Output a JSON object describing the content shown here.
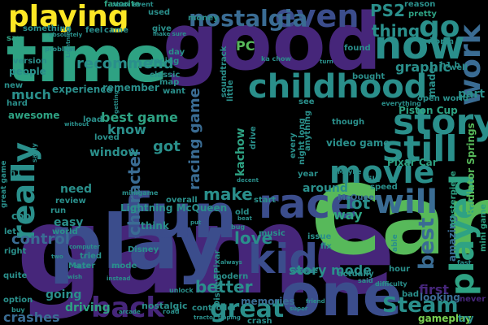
{
  "title": "word cloud",
  "palette": {
    "purple": "#46267a",
    "indigo": "#3b4d8c",
    "blue": "#3a6c93",
    "teal": "#2a8f8b",
    "sea": "#2ea283",
    "green": "#57b95a",
    "lime": "#7ad151",
    "yellow": "#fde725",
    "dark": "#3a1f5a"
  },
  "words": [
    {
      "text": "game",
      "color": "purple"
    },
    {
      "text": "Car",
      "color": "green"
    },
    {
      "text": "play",
      "color": "indigo"
    },
    {
      "text": "good",
      "color": "purple"
    },
    {
      "text": "time",
      "color": "sea"
    },
    {
      "text": "one",
      "color": "indigo"
    },
    {
      "text": "fun",
      "color": "indigo"
    },
    {
      "text": "childhood",
      "color": "teal"
    },
    {
      "text": "race",
      "color": "indigo"
    },
    {
      "text": "work",
      "color": "blue"
    },
    {
      "text": "now",
      "color": "teal"
    },
    {
      "text": "story",
      "color": "teal"
    },
    {
      "text": "still",
      "color": "teal"
    },
    {
      "text": "movie",
      "color": "teal"
    },
    {
      "text": "kid",
      "color": "indigo"
    },
    {
      "text": "played",
      "color": "sea"
    },
    {
      "text": "will",
      "color": "blue"
    },
    {
      "text": "go",
      "color": "teal"
    },
    {
      "text": "even",
      "color": "indigo"
    },
    {
      "text": "playing",
      "color": "yellow"
    },
    {
      "text": "nostalgia",
      "color": "blue"
    },
    {
      "text": "really",
      "color": "teal"
    },
    {
      "text": "back",
      "color": "purple"
    },
    {
      "text": "great",
      "color": "teal"
    },
    {
      "text": "Steam",
      "color": "teal"
    },
    {
      "text": "best",
      "color": "blue"
    },
    {
      "text": "PS2",
      "color": "teal"
    },
    {
      "text": "thing",
      "color": "teal"
    },
    {
      "text": "recommend",
      "color": "teal"
    },
    {
      "text": "control",
      "color": "blue"
    },
    {
      "text": "love",
      "color": "teal"
    },
    {
      "text": "better",
      "color": "teal"
    },
    {
      "text": "make",
      "color": "teal"
    },
    {
      "text": "character",
      "color": "blue"
    },
    {
      "text": "lot",
      "color": "teal"
    },
    {
      "text": "story mode",
      "color": "teal"
    },
    {
      "text": "much",
      "color": "teal"
    },
    {
      "text": "got",
      "color": "teal"
    },
    {
      "text": "know",
      "color": "teal"
    },
    {
      "text": "best game",
      "color": "sea"
    },
    {
      "text": "racing game",
      "color": "blue"
    },
    {
      "text": "graphic",
      "color": "teal"
    },
    {
      "text": "first",
      "color": "purple"
    },
    {
      "text": "crashes",
      "color": "blue"
    },
    {
      "text": "window",
      "color": "teal"
    },
    {
      "text": "need",
      "color": "teal"
    },
    {
      "text": "way",
      "color": "sea"
    },
    {
      "text": "around",
      "color": "teal"
    },
    {
      "text": "easy",
      "color": "teal"
    },
    {
      "text": "PC",
      "color": "green"
    },
    {
      "text": "kachow",
      "color": "sea"
    },
    {
      "text": "going",
      "color": "teal"
    },
    {
      "text": "driving",
      "color": "sea"
    },
    {
      "text": "Pixar Car",
      "color": "sea"
    },
    {
      "text": "video game",
      "color": "teal"
    },
    {
      "text": "Piston Cup",
      "color": "sea"
    },
    {
      "text": "Radiator Springs",
      "color": "green"
    },
    {
      "text": "Lightning McQueen",
      "color": "teal"
    },
    {
      "text": "awesome",
      "color": "sea"
    },
    {
      "text": "looking",
      "color": "blue"
    },
    {
      "text": "amazing",
      "color": "blue"
    },
    {
      "text": "part",
      "color": "teal"
    },
    {
      "text": "made",
      "color": "teal"
    },
    {
      "text": "memories",
      "color": "blue"
    },
    {
      "text": "gameplay",
      "color": "lime"
    },
    {
      "text": "cool",
      "color": "teal"
    },
    {
      "text": "think",
      "color": "teal"
    },
    {
      "text": "people",
      "color": "teal"
    },
    {
      "text": "experience",
      "color": "teal"
    },
    {
      "text": "remember",
      "color": "teal"
    },
    {
      "text": "nostalgic",
      "color": "teal"
    },
    {
      "text": "controller",
      "color": "teal"
    },
    {
      "text": "mini game",
      "color": "sea"
    },
    {
      "text": "open world",
      "color": "teal"
    },
    {
      "text": "hard",
      "color": "teal"
    },
    {
      "text": "McQueen",
      "color": "blue"
    },
    {
      "text": "say",
      "color": "sea"
    },
    {
      "text": "feel",
      "color": "teal"
    },
    {
      "text": "came",
      "color": "teal"
    },
    {
      "text": "give",
      "color": "teal"
    },
    {
      "text": "classic",
      "color": "teal"
    },
    {
      "text": "favorite",
      "color": "sea"
    },
    {
      "text": "money",
      "color": "teal"
    },
    {
      "text": "reason",
      "color": "teal"
    },
    {
      "text": "pretty",
      "color": "sea"
    },
    {
      "text": "worth",
      "color": "teal"
    },
    {
      "text": "found",
      "color": "teal"
    },
    {
      "text": "bought",
      "color": "teal"
    },
    {
      "text": "masterpiece",
      "color": "sea"
    },
    {
      "text": "version",
      "color": "teal"
    },
    {
      "text": "something",
      "color": "teal"
    },
    {
      "text": "see",
      "color": "teal"
    },
    {
      "text": "though",
      "color": "teal"
    },
    {
      "text": "tried",
      "color": "teal"
    },
    {
      "text": "Mater",
      "color": "teal"
    },
    {
      "text": "music",
      "color": "teal"
    },
    {
      "text": "issue",
      "color": "teal"
    },
    {
      "text": "fix",
      "color": "teal"
    },
    {
      "text": "hour",
      "color": "teal"
    },
    {
      "text": "review",
      "color": "teal"
    },
    {
      "text": "run",
      "color": "teal"
    },
    {
      "text": "quite",
      "color": "teal"
    },
    {
      "text": "option",
      "color": "teal"
    },
    {
      "text": "overall",
      "color": "teal"
    },
    {
      "text": "start",
      "color": "teal"
    },
    {
      "text": "year",
      "color": "teal"
    },
    {
      "text": "speed",
      "color": "teal"
    },
    {
      "text": "file",
      "color": "teal"
    },
    {
      "text": "never",
      "color": "purple"
    },
    {
      "text": "try",
      "color": "teal"
    },
    {
      "text": "crash",
      "color": "teal"
    },
    {
      "text": "road",
      "color": "teal"
    },
    {
      "text": "bad",
      "color": "teal"
    },
    {
      "text": "well",
      "color": "teal"
    },
    {
      "text": "fast",
      "color": "teal"
    },
    {
      "text": "want",
      "color": "teal"
    },
    {
      "text": "load",
      "color": "teal"
    },
    {
      "text": "loved",
      "color": "teal"
    },
    {
      "text": "every",
      "color": "teal"
    },
    {
      "text": "drive",
      "color": "teal"
    },
    {
      "text": "used",
      "color": "teal"
    },
    {
      "text": "racing",
      "color": "teal"
    },
    {
      "text": "day",
      "color": "teal"
    },
    {
      "text": "new",
      "color": "teal"
    },
    {
      "text": "let",
      "color": "teal"
    },
    {
      "text": "right",
      "color": "teal"
    },
    {
      "text": "world",
      "color": "teal"
    },
    {
      "text": "soundtrack",
      "color": "teal"
    },
    {
      "text": "actually",
      "color": "teal"
    },
    {
      "text": "modern",
      "color": "teal"
    },
    {
      "text": "Disney Pixar",
      "color": "teal"
    },
    {
      "text": "little",
      "color": "teal"
    },
    {
      "text": "map",
      "color": "teal"
    },
    {
      "text": "night long",
      "color": "teal"
    },
    {
      "text": "everything",
      "color": "teal"
    },
    {
      "text": "anything",
      "color": "teal"
    },
    {
      "text": "Disney",
      "color": "teal"
    },
    {
      "text": "minigame",
      "color": "teal"
    },
    {
      "text": "buy",
      "color": "teal"
    },
    {
      "text": "event",
      "color": "teal"
    },
    {
      "text": "xbox",
      "color": "teal"
    },
    {
      "text": "problem",
      "color": "teal"
    },
    {
      "text": "absolutely",
      "color": "teal"
    },
    {
      "text": "Lightning",
      "color": "teal"
    },
    {
      "text": "without",
      "color": "teal"
    },
    {
      "text": "make sure",
      "color": "teal"
    },
    {
      "text": "tractor tipping",
      "color": "teal"
    },
    {
      "text": "super",
      "color": "teal"
    },
    {
      "text": "friend",
      "color": "teal"
    },
    {
      "text": "explore",
      "color": "teal"
    },
    {
      "text": "said",
      "color": "teal"
    },
    {
      "text": "difficulty",
      "color": "teal"
    },
    {
      "text": "mode",
      "color": "teal"
    },
    {
      "text": "always",
      "color": "teal"
    },
    {
      "text": "unlock",
      "color": "teal"
    },
    {
      "text": "put",
      "color": "teal"
    },
    {
      "text": "beat",
      "color": "teal"
    },
    {
      "text": "old",
      "color": "teal"
    },
    {
      "text": "bug",
      "color": "teal"
    },
    {
      "text": "decent",
      "color": "teal"
    },
    {
      "text": "able",
      "color": "teal"
    },
    {
      "text": "sadly",
      "color": "teal"
    },
    {
      "text": "h1",
      "color": "teal"
    },
    {
      "text": "h1 b",
      "color": "teal"
    },
    {
      "text": "ka chow",
      "color": "teal"
    },
    {
      "text": "turn",
      "color": "teal"
    },
    {
      "text": "Maybe",
      "color": "teal"
    },
    {
      "text": "great game",
      "color": "teal"
    },
    {
      "text": "arcade",
      "color": "teal"
    },
    {
      "text": "computer",
      "color": "teal"
    },
    {
      "text": "instead",
      "color": "teal"
    },
    {
      "text": "ok",
      "color": "teal"
    },
    {
      "text": "two",
      "color": "teal"
    },
    {
      "text": "getting",
      "color": "teal"
    },
    {
      "text": "wish",
      "color": "teal"
    }
  ]
}
